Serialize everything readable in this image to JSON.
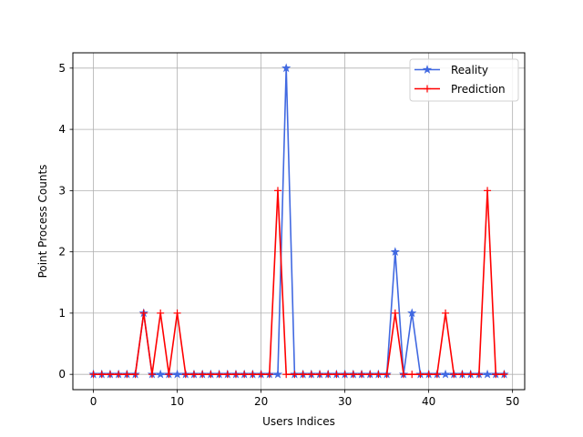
{
  "chart_data": {
    "type": "line",
    "xlabel": "Users Indices",
    "ylabel": "Point Process Counts",
    "xlim": [
      -2.45,
      51.45
    ],
    "ylim": [
      -0.25,
      5.25
    ],
    "xticks": [
      0,
      10,
      20,
      30,
      40,
      50
    ],
    "yticks": [
      0,
      1,
      2,
      3,
      4,
      5
    ],
    "grid": true,
    "legend_position": "upper right",
    "x": [
      0,
      1,
      2,
      3,
      4,
      5,
      6,
      7,
      8,
      9,
      10,
      11,
      12,
      13,
      14,
      15,
      16,
      17,
      18,
      19,
      20,
      21,
      22,
      23,
      24,
      25,
      26,
      27,
      28,
      29,
      30,
      31,
      32,
      33,
      34,
      35,
      36,
      37,
      38,
      39,
      40,
      41,
      42,
      43,
      44,
      45,
      46,
      47,
      48,
      49
    ],
    "series": [
      {
        "name": "Reality",
        "color": "#4169e1",
        "marker": "star",
        "values": [
          0,
          0,
          0,
          0,
          0,
          0,
          1,
          0,
          0,
          0,
          0,
          0,
          0,
          0,
          0,
          0,
          0,
          0,
          0,
          0,
          0,
          0,
          0,
          5,
          0,
          0,
          0,
          0,
          0,
          0,
          0,
          0,
          0,
          0,
          0,
          0,
          2,
          0,
          1,
          0,
          0,
          0,
          0,
          0,
          0,
          0,
          0,
          0,
          0,
          0
        ]
      },
      {
        "name": "Prediction",
        "color": "#ff0000",
        "marker": "plus",
        "values": [
          0,
          0,
          0,
          0,
          0,
          0,
          1,
          0,
          1,
          0,
          1,
          0,
          0,
          0,
          0,
          0,
          0,
          0,
          0,
          0,
          0,
          0,
          3,
          0,
          0,
          0,
          0,
          0,
          0,
          0,
          0,
          0,
          0,
          0,
          0,
          0,
          1,
          0,
          0,
          0,
          0,
          0,
          1,
          0,
          0,
          0,
          0,
          3,
          0,
          0
        ]
      }
    ]
  }
}
